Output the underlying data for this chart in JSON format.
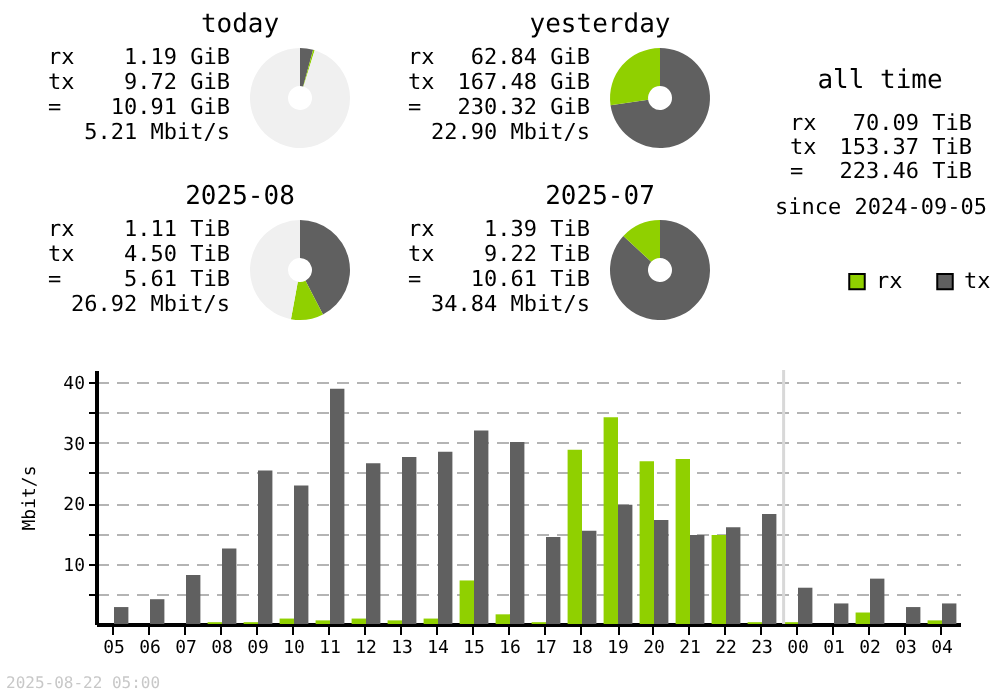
{
  "chart_data": [
    {
      "type": "donut",
      "title": "today",
      "categories": [
        null,
        null,
        null
      ],
      "values": [
        4.22,
        0.52,
        95.26
      ],
      "colors": [
        "#606060",
        "#90d000",
        "#f0f0f0"
      ],
      "annotations": [
        "rx 1.19 GiB",
        "tx 9.72 GiB",
        "= 10.91 GiB",
        "5.21 Mbit/s"
      ]
    },
    {
      "type": "donut",
      "title": "yesterday",
      "categories": [
        null,
        null,
        null
      ],
      "values": [
        72.7,
        27.3,
        0
      ],
      "colors": [
        "#606060",
        "#90d000",
        "#f0f0f0"
      ],
      "annotations": [
        "rx 62.84 GiB",
        "tx 167.48 GiB",
        "= 230.32 GiB",
        "22.90 Mbit/s"
      ]
    },
    {
      "type": "other",
      "title": "all time",
      "annotations": [
        "rx 70.09 TiB",
        "tx 153.37 TiB",
        "= 223.46 TiB",
        "since 2024-09-05"
      ]
    },
    {
      "type": "donut",
      "title": "2025-08",
      "categories": [
        null,
        null,
        null
      ],
      "values": [
        42.4,
        10.5,
        47.1
      ],
      "colors": [
        "#606060",
        "#90d000",
        "#f0f0f0"
      ],
      "annotations": [
        "rx 1.11 TiB",
        "tx 4.50 TiB",
        "= 5.61 TiB",
        "26.92 Mbit/s"
      ]
    },
    {
      "type": "donut",
      "title": "2025-07",
      "categories": [
        null,
        null,
        null
      ],
      "values": [
        86.9,
        13.1,
        0
      ],
      "colors": [
        "#606060",
        "#90d000",
        "#f0f0f0"
      ],
      "annotations": [
        "rx 1.39 TiB",
        "tx 9.22 TiB",
        "= 10.61 TiB",
        "34.84 Mbit/s"
      ]
    },
    {
      "type": "bar",
      "ylabel": "Mbit/s",
      "categories": [
        "05",
        "06",
        "07",
        "08",
        "09",
        "10",
        "11",
        "12",
        "13",
        "14",
        "15",
        "16",
        "17",
        "18",
        "19",
        "20",
        "21",
        "22",
        "23",
        "00",
        "01",
        "02",
        "03",
        "04"
      ],
      "series": [
        {
          "name": "rx",
          "color": "#90d000",
          "values": [
            0,
            0,
            0,
            0.3,
            0.3,
            0.9,
            0.6,
            0.9,
            0.6,
            0.9,
            7.2,
            1.6,
            0.3,
            28.8,
            34.2,
            26.9,
            27.3,
            14.7,
            0.3,
            0.3,
            0,
            1.9,
            0,
            0.6
          ]
        },
        {
          "name": "tx",
          "color": "#606060",
          "values": [
            2.8,
            4.1,
            8.1,
            12.5,
            25.4,
            22.9,
            38.9,
            26.6,
            27.6,
            28.5,
            32.0,
            30.1,
            14.4,
            15.4,
            19.7,
            17.2,
            14.7,
            16.0,
            18.2,
            6.0,
            3.4,
            7.5,
            2.8,
            3.4
          ]
        }
      ],
      "ylim": [
        0,
        42
      ],
      "yticks": [
        {
          "value": 5,
          "label": null
        },
        10,
        {
          "value": 15,
          "label": null
        },
        20,
        {
          "value": 25,
          "label": null
        },
        30,
        {
          "value": 35,
          "label": null
        },
        40
      ],
      "grid": "y",
      "legend": "top right",
      "ref_lines": [
        {
          "axis": "x",
          "value": "00",
          "color": "#d8d8d8"
        }
      ],
      "annotations": [
        "2025-08-22 05:00"
      ]
    }
  ]
}
